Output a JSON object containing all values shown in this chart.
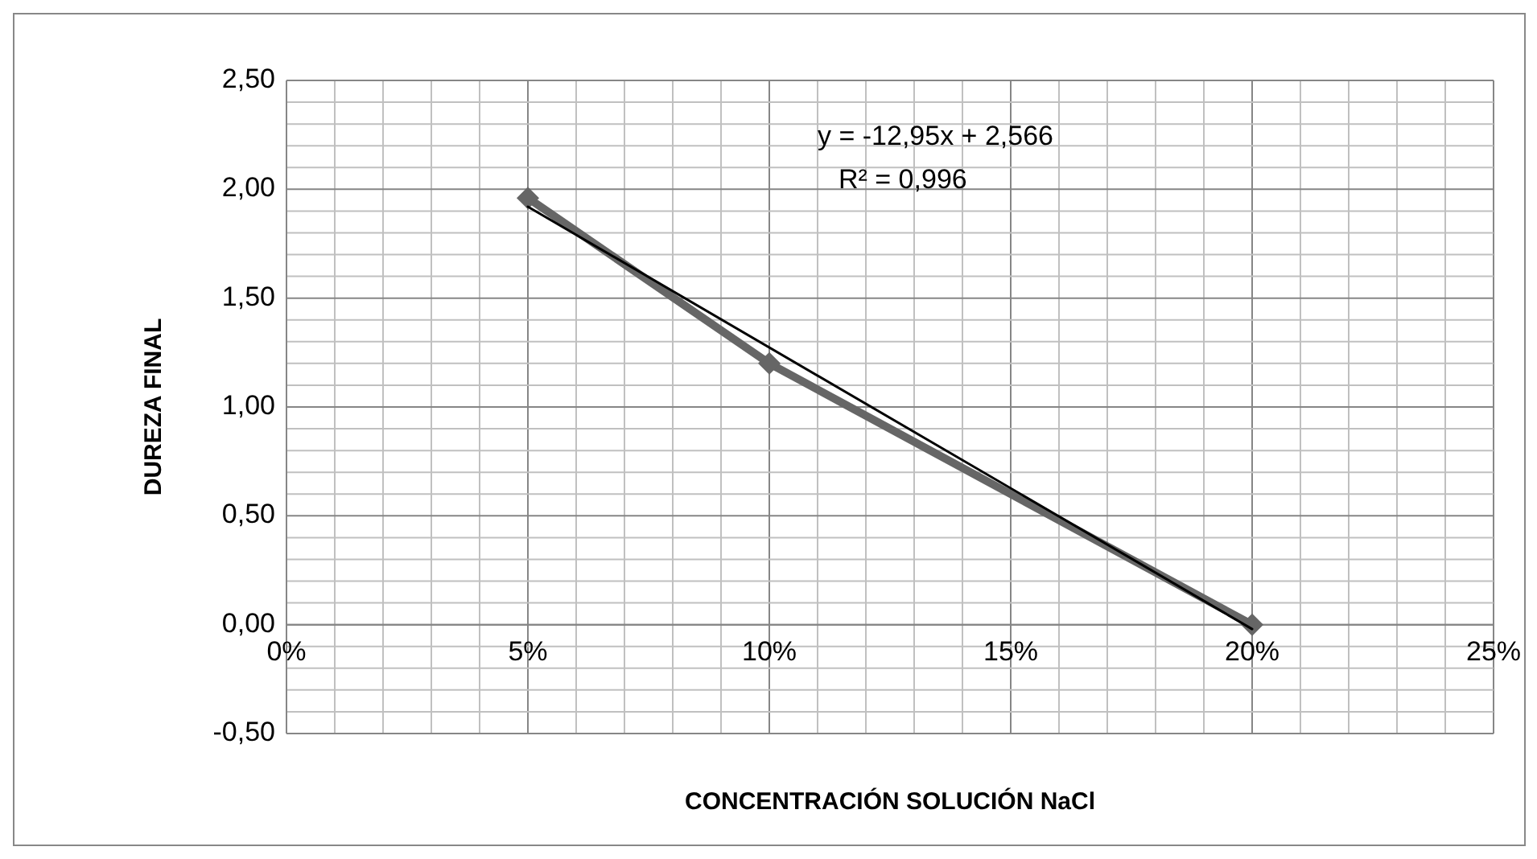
{
  "chart_data": {
    "type": "line",
    "xlabel": "CONCENTRACIÓN SOLUCIÓN  NaCl",
    "ylabel": "DUREZA  FINAL",
    "annotations": [
      "y = -12,95x + 2,566",
      "R² = 0,996"
    ],
    "xlim": [
      0,
      0.25
    ],
    "ylim": [
      -0.5,
      2.5
    ],
    "xticks": [
      {
        "value": 0,
        "label": "0%"
      },
      {
        "value": 0.01,
        "label": null
      },
      {
        "value": 0.02,
        "label": null
      },
      {
        "value": 0.03,
        "label": null
      },
      {
        "value": 0.04,
        "label": null
      },
      {
        "value": 0.05,
        "label": "5%"
      },
      {
        "value": 0.06,
        "label": null
      },
      {
        "value": 0.07,
        "label": null
      },
      {
        "value": 0.08,
        "label": null
      },
      {
        "value": 0.09,
        "label": null
      },
      {
        "value": 0.1,
        "label": "10%"
      },
      {
        "value": 0.11,
        "label": null
      },
      {
        "value": 0.12,
        "label": null
      },
      {
        "value": 0.13,
        "label": null
      },
      {
        "value": 0.14,
        "label": null
      },
      {
        "value": 0.15,
        "label": "15%"
      },
      {
        "value": 0.16,
        "label": null
      },
      {
        "value": 0.17,
        "label": null
      },
      {
        "value": 0.18,
        "label": null
      },
      {
        "value": 0.19,
        "label": null
      },
      {
        "value": 0.2,
        "label": "20%"
      },
      {
        "value": 0.21,
        "label": null
      },
      {
        "value": 0.22,
        "label": null
      },
      {
        "value": 0.23,
        "label": null
      },
      {
        "value": 0.24,
        "label": null
      },
      {
        "value": 0.25,
        "label": "25%"
      }
    ],
    "yticks": [
      {
        "value": -0.5,
        "label": "-0,50"
      },
      {
        "value": -0.4,
        "label": null
      },
      {
        "value": -0.3,
        "label": null
      },
      {
        "value": -0.2,
        "label": null
      },
      {
        "value": -0.1,
        "label": null
      },
      {
        "value": 0,
        "label": "0,00"
      },
      {
        "value": 0.1,
        "label": null
      },
      {
        "value": 0.2,
        "label": null
      },
      {
        "value": 0.3,
        "label": null
      },
      {
        "value": 0.4,
        "label": null
      },
      {
        "value": 0.5,
        "label": "0,50"
      },
      {
        "value": 0.6,
        "label": null
      },
      {
        "value": 0.7,
        "label": null
      },
      {
        "value": 0.8,
        "label": null
      },
      {
        "value": 0.9,
        "label": null
      },
      {
        "value": 1,
        "label": "1,00"
      },
      {
        "value": 1.1,
        "label": null
      },
      {
        "value": 1.2,
        "label": null
      },
      {
        "value": 1.3,
        "label": null
      },
      {
        "value": 1.4,
        "label": null
      },
      {
        "value": 1.5,
        "label": "1,50"
      },
      {
        "value": 1.6,
        "label": null
      },
      {
        "value": 1.7,
        "label": null
      },
      {
        "value": 1.8,
        "label": null
      },
      {
        "value": 1.9,
        "label": null
      },
      {
        "value": 2,
        "label": "2,00"
      },
      {
        "value": 2.1,
        "label": null
      },
      {
        "value": 2.2,
        "label": null
      },
      {
        "value": 2.3,
        "label": null
      },
      {
        "value": 2.4,
        "label": null
      },
      {
        "value": 2.5,
        "label": "2,50"
      }
    ],
    "grid": true,
    "series": [
      {
        "color": "#666666",
        "marker": "diamond",
        "x": [
          0.05,
          0.1,
          0.2
        ],
        "values": [
          1.96,
          1.2,
          0.0
        ]
      },
      {
        "color": "#000000",
        "marker": "none",
        "x": [
          0.05,
          0.2
        ],
        "values": [
          1.92,
          -0.02
        ]
      }
    ]
  }
}
